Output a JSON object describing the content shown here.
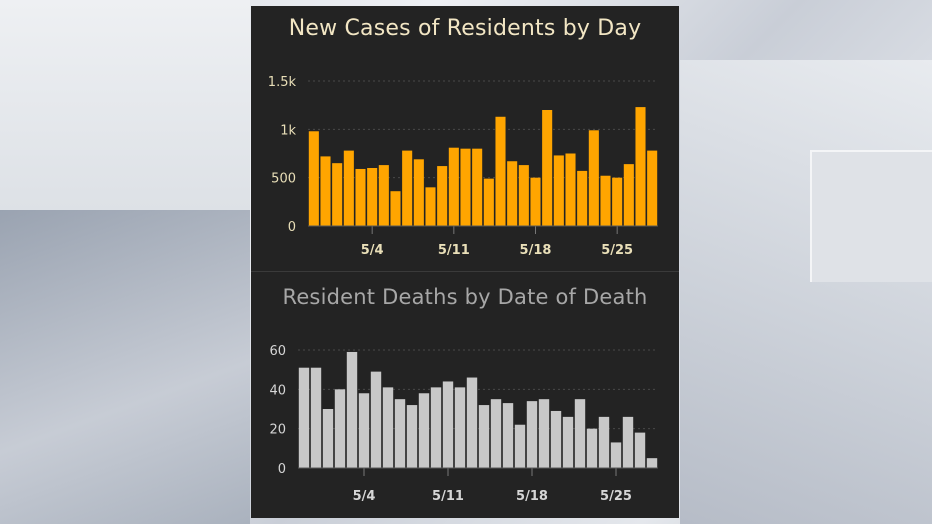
{
  "chart_data": [
    {
      "type": "bar",
      "title": "New Cases of Residents by Day",
      "color": "#FFA500",
      "title_color": "#F2E6C4",
      "ylim": [
        0,
        1500
      ],
      "yticks": [
        0,
        500,
        1000,
        1500
      ],
      "ytick_labels": [
        "0",
        "500",
        "1k",
        "1.5k"
      ],
      "xtick_labels": [
        {
          "index": 5,
          "label": "5/4"
        },
        {
          "index": 12,
          "label": "5/11"
        },
        {
          "index": 19,
          "label": "5/18"
        },
        {
          "index": 26,
          "label": "5/25"
        }
      ],
      "values": [
        980,
        720,
        650,
        780,
        590,
        600,
        630,
        360,
        780,
        690,
        400,
        620,
        810,
        800,
        800,
        490,
        1130,
        670,
        630,
        500,
        1200,
        730,
        750,
        570,
        990,
        520,
        500,
        640,
        1230,
        780
      ],
      "grid": true
    },
    {
      "type": "bar",
      "title": "Resident Deaths by Date of Death",
      "color": "#C8C8C8",
      "title_color": "#A7A7A7",
      "ylim": [
        0,
        60
      ],
      "yticks": [
        0,
        20,
        40,
        60
      ],
      "ytick_labels": [
        "0",
        "20",
        "40",
        "60"
      ],
      "xtick_labels": [
        {
          "index": 5,
          "label": "5/4"
        },
        {
          "index": 12,
          "label": "5/11"
        },
        {
          "index": 19,
          "label": "5/18"
        },
        {
          "index": 26,
          "label": "5/25"
        }
      ],
      "values": [
        51,
        51,
        30,
        40,
        59,
        38,
        49,
        41,
        35,
        32,
        38,
        41,
        44,
        41,
        46,
        32,
        35,
        33,
        22,
        34,
        35,
        29,
        26,
        35,
        20,
        26,
        13,
        26,
        18,
        5
      ],
      "grid": true
    }
  ]
}
